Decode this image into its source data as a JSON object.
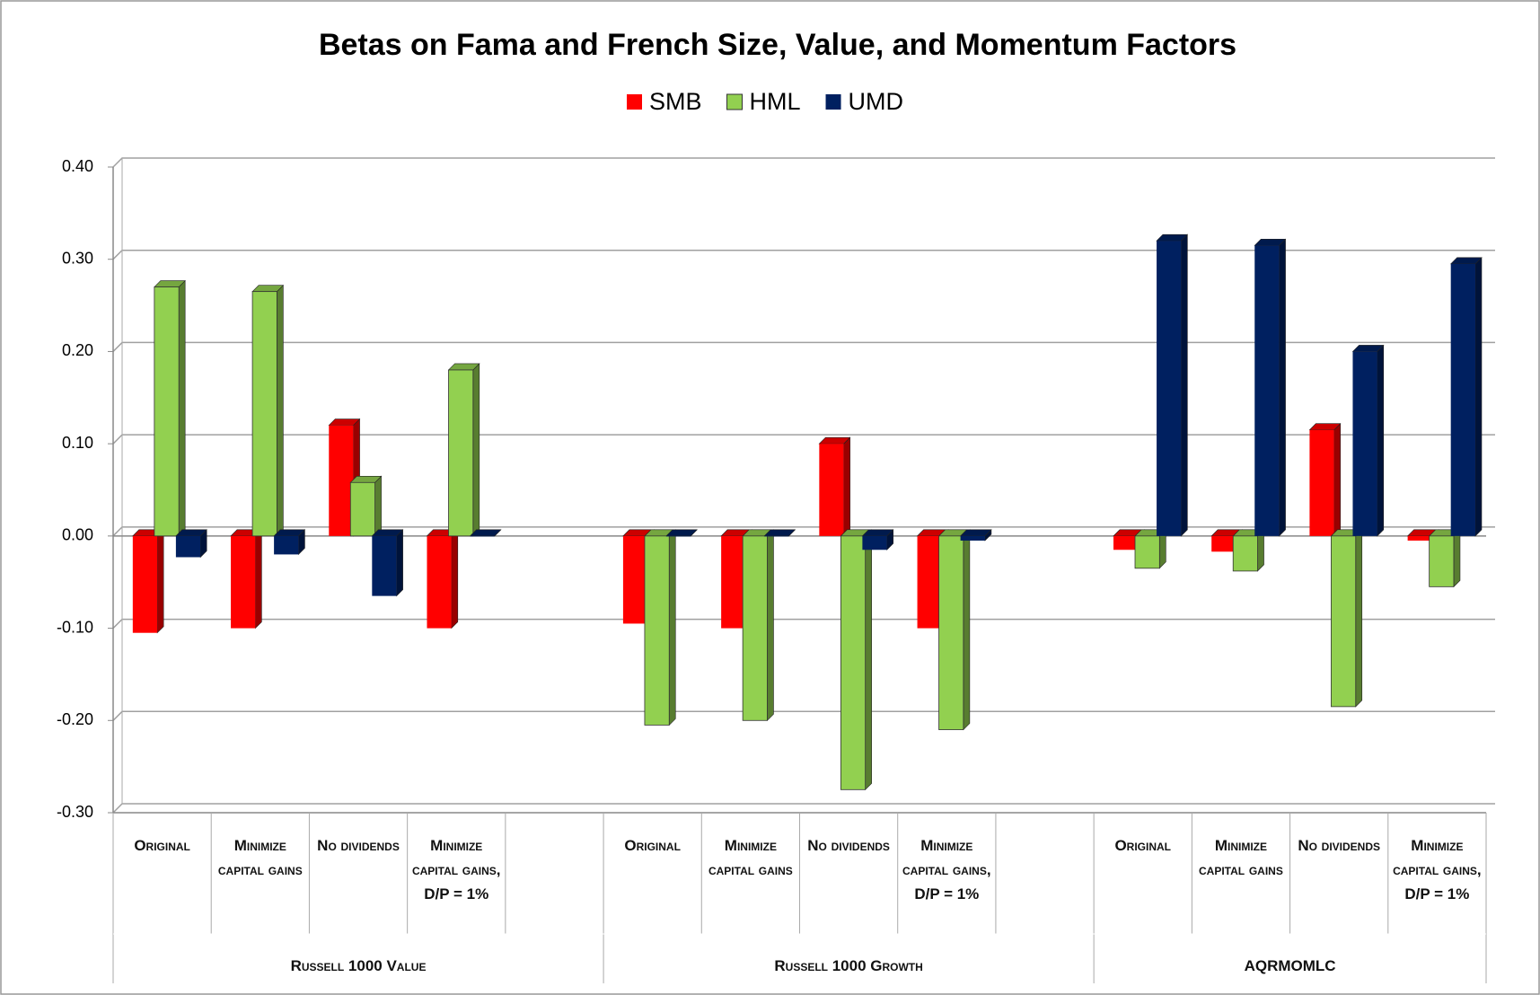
{
  "chart_data": {
    "type": "bar",
    "title": "Betas on Fama and French Size, Value, and Momentum Factors",
    "categories": [
      "Original",
      "Minimize capital gains",
      "No dividends",
      "Minimize capital gains, D/P = 1%",
      null,
      "Original",
      "Minimize capital gains",
      "No dividends",
      "Minimize capital gains, D/P = 1%",
      null,
      "Original",
      "Minimize capital gains",
      "No dividends",
      "Minimize capital gains, D/P = 1%"
    ],
    "groups": [
      "Russell 1000 Value",
      "Russell 1000 Growth",
      "AQRMOMLC"
    ],
    "series": [
      {
        "name": "SMB",
        "color": "#ff0000",
        "values": [
          -0.105,
          -0.1,
          0.12,
          -0.1,
          null,
          -0.095,
          -0.1,
          0.1,
          -0.1,
          null,
          -0.015,
          -0.017,
          0.115,
          -0.005
        ]
      },
      {
        "name": "HML",
        "color": "#92d050",
        "values": [
          0.27,
          0.265,
          0.058,
          0.18,
          null,
          -0.205,
          -0.2,
          -0.275,
          -0.21,
          null,
          -0.035,
          -0.038,
          -0.185,
          -0.055
        ]
      },
      {
        "name": "UMD",
        "color": "#002060",
        "values": [
          -0.023,
          -0.02,
          -0.065,
          0.0,
          null,
          0.0,
          0.0,
          -0.015,
          -0.005,
          null,
          0.32,
          0.315,
          0.2,
          0.295
        ]
      }
    ],
    "ylim": [
      -0.3,
      0.4
    ],
    "yticks": [
      {
        "value": -0.3,
        "label": "-0.30"
      },
      {
        "value": -0.2,
        "label": "-0.20"
      },
      {
        "value": -0.1,
        "label": "-0.10"
      },
      {
        "value": 0,
        "label": "0.00"
      },
      {
        "value": 0.1,
        "label": "0.10"
      },
      {
        "value": 0.2,
        "label": "0.20"
      },
      {
        "value": 0.3,
        "label": "0.30"
      },
      {
        "value": 0.4,
        "label": "0.40"
      }
    ],
    "grid": true,
    "legend": "top"
  }
}
